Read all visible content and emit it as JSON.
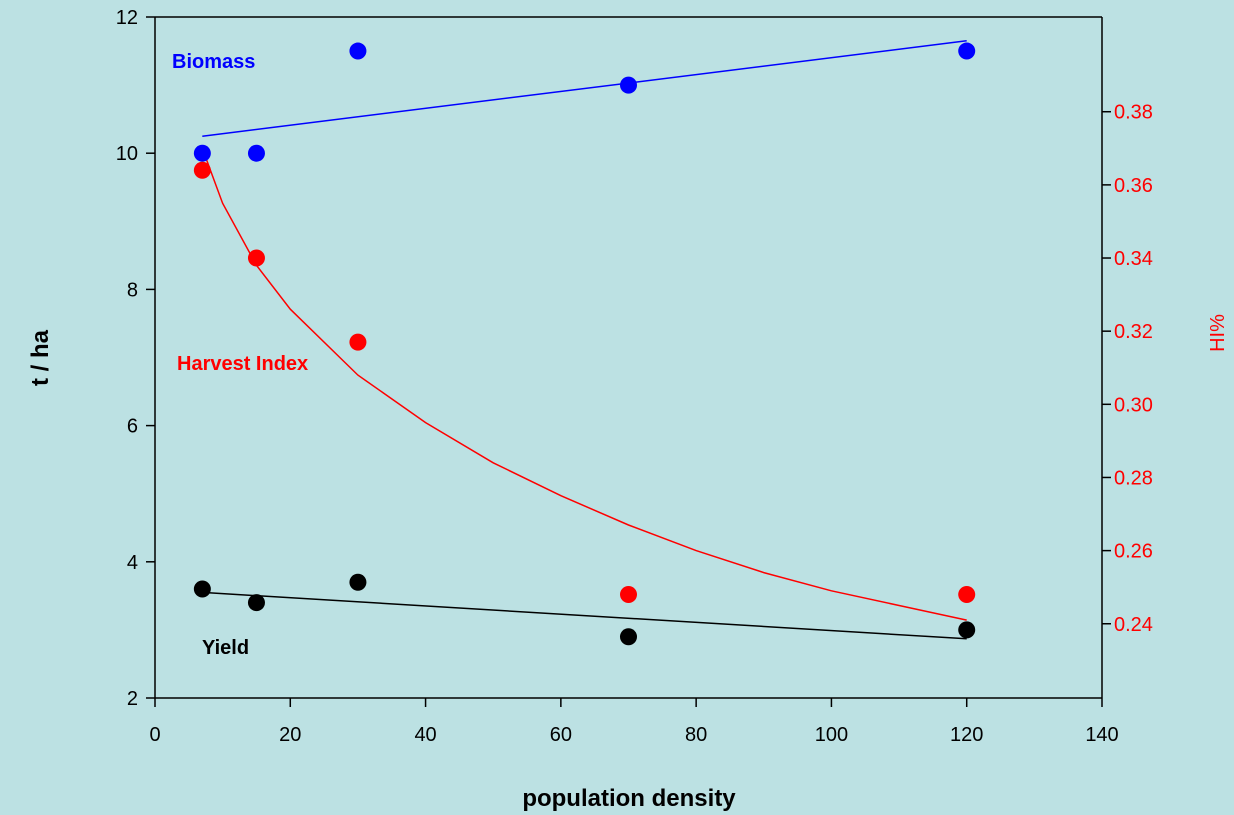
{
  "colors": {
    "background": "#bce1e3",
    "axis": "#000000",
    "biomass": "#0000ff",
    "harvest_index": "#ff0000",
    "yield": "#000000"
  },
  "chart_data": {
    "type": "scatter",
    "title": "",
    "xlabel": "population density",
    "ylabel": "t / ha",
    "y2label": "HI%",
    "xlim": [
      0,
      140
    ],
    "ylim": [
      2,
      12
    ],
    "y2lim": [
      0.2197,
      0.4059
    ],
    "x_ticks": [
      0,
      20,
      40,
      60,
      80,
      100,
      120,
      140
    ],
    "y_ticks": [
      2,
      4,
      6,
      8,
      10,
      12
    ],
    "y2_ticks": [
      "0.24",
      "0.26",
      "0.28",
      "0.30",
      "0.32",
      "0.34",
      "0.36",
      "0.38"
    ],
    "grid": false,
    "legend": "none",
    "series": [
      {
        "name": "Biomass",
        "axis": "left",
        "color": "#0000ff",
        "x": [
          7,
          15,
          30,
          70,
          120
        ],
        "y": [
          10.0,
          10.0,
          11.5,
          11.0,
          11.5
        ],
        "fit": {
          "type": "linear",
          "x": [
            7,
            120
          ],
          "y": [
            10.25,
            11.65
          ]
        }
      },
      {
        "name": "Harvest Index",
        "axis": "right",
        "color": "#ff0000",
        "x": [
          7,
          15,
          30,
          70,
          120
        ],
        "y": [
          0.364,
          0.34,
          0.317,
          0.248,
          0.248
        ],
        "fit": {
          "type": "curve",
          "x": [
            7,
            10,
            15,
            20,
            30,
            40,
            50,
            60,
            70,
            80,
            90,
            100,
            110,
            120
          ],
          "y": [
            0.37,
            0.355,
            0.338,
            0.326,
            0.308,
            0.295,
            0.284,
            0.275,
            0.267,
            0.26,
            0.254,
            0.249,
            0.245,
            0.241
          ]
        }
      },
      {
        "name": "Yield",
        "axis": "left",
        "color": "#000000",
        "x": [
          7,
          15,
          30,
          70,
          120
        ],
        "y": [
          3.6,
          3.4,
          3.7,
          2.9,
          3.0
        ],
        "fit": {
          "type": "linear",
          "x": [
            7,
            120
          ],
          "y": [
            3.55,
            2.87
          ]
        }
      }
    ]
  }
}
